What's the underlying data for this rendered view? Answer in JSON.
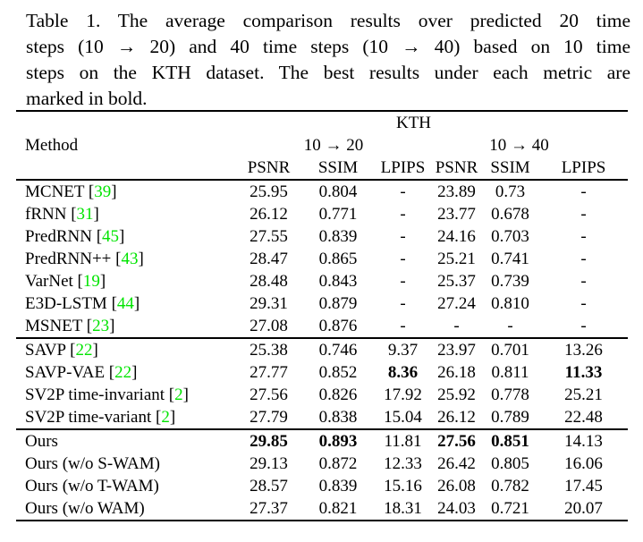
{
  "colors": {
    "citation": "#00e400",
    "text": "#000000",
    "background": "#ffffff"
  },
  "caption": {
    "lines": [
      "Table 1. The average comparison results over predicted 20 time",
      "steps (10 → 20) and 40 time steps (10 → 40) based on 10 time",
      "steps on the KTH dataset. The best results under each metric are",
      "marked in bold."
    ]
  },
  "table": {
    "dataset_header": "KTH",
    "method_header": "Method",
    "group_headers": [
      "10 → 20",
      "10 → 40"
    ],
    "metric_headers": [
      "PSNR",
      "SSIM",
      "LPIPS",
      "PSNR",
      "SSIM",
      "LPIPS"
    ],
    "groups": [
      {
        "rows": [
          {
            "method": "MCNET",
            "cite": "39",
            "values": [
              "25.95",
              "0.804",
              "-",
              "23.89",
              "0.73",
              "-"
            ],
            "bold": []
          },
          {
            "method": "fRNN",
            "cite": "31",
            "values": [
              "26.12",
              "0.771",
              "-",
              "23.77",
              "0.678",
              "-"
            ],
            "bold": []
          },
          {
            "method": "PredRNN",
            "cite": "45",
            "values": [
              "27.55",
              "0.839",
              "-",
              "24.16",
              "0.703",
              "-"
            ],
            "bold": []
          },
          {
            "method": "PredRNN++",
            "cite": "43",
            "values": [
              "28.47",
              "0.865",
              "-",
              "25.21",
              "0.741",
              "-"
            ],
            "bold": []
          },
          {
            "method": "VarNet",
            "cite": "19",
            "values": [
              "28.48",
              "0.843",
              "-",
              "25.37",
              "0.739",
              "-"
            ],
            "bold": []
          },
          {
            "method": "E3D-LSTM",
            "cite": "44",
            "values": [
              "29.31",
              "0.879",
              "-",
              "27.24",
              "0.810",
              "-"
            ],
            "bold": []
          },
          {
            "method": "MSNET",
            "cite": "23",
            "values": [
              "27.08",
              "0.876",
              "-",
              "-",
              "-",
              "-"
            ],
            "bold": []
          }
        ]
      },
      {
        "rows": [
          {
            "method": "SAVP",
            "cite": "22",
            "values": [
              "25.38",
              "0.746",
              "9.37",
              "23.97",
              "0.701",
              "13.26"
            ],
            "bold": []
          },
          {
            "method": "SAVP-VAE",
            "cite": "22",
            "values": [
              "27.77",
              "0.852",
              "8.36",
              "26.18",
              "0.811",
              "11.33"
            ],
            "bold": [
              2,
              5
            ]
          },
          {
            "method": "SV2P time-invariant",
            "cite": "2",
            "values": [
              "27.56",
              "0.826",
              "17.92",
              "25.92",
              "0.778",
              "25.21"
            ],
            "bold": []
          },
          {
            "method": "SV2P time-variant",
            "cite": "2",
            "values": [
              "27.79",
              "0.838",
              "15.04",
              "26.12",
              "0.789",
              "22.48"
            ],
            "bold": []
          }
        ]
      },
      {
        "rows": [
          {
            "method": "Ours",
            "cite": "",
            "values": [
              "29.85",
              "0.893",
              "11.81",
              "27.56",
              "0.851",
              "14.13"
            ],
            "bold": [
              0,
              1,
              3,
              4
            ]
          },
          {
            "method": "Ours (w/o S-WAM)",
            "cite": "",
            "values": [
              "29.13",
              "0.872",
              "12.33",
              "26.42",
              "0.805",
              "16.06"
            ],
            "bold": []
          },
          {
            "method": "Ours (w/o T-WAM)",
            "cite": "",
            "values": [
              "28.57",
              "0.839",
              "15.16",
              "26.08",
              "0.782",
              "17.45"
            ],
            "bold": []
          },
          {
            "method": "Ours (w/o WAM)",
            "cite": "",
            "values": [
              "27.37",
              "0.821",
              "18.31",
              "24.03",
              "0.721",
              "20.07"
            ],
            "bold": []
          }
        ]
      }
    ]
  }
}
